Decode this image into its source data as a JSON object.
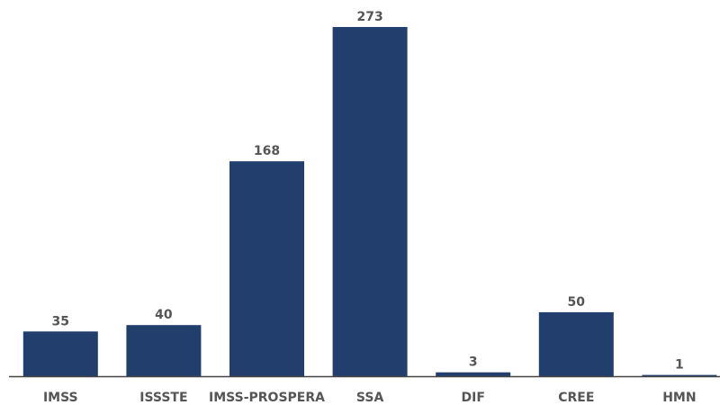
{
  "chart_data": {
    "type": "bar",
    "categories": [
      "IMSS",
      "ISSSTE",
      "IMSS-PROSPERA",
      "SSA",
      "DIF",
      "CREE",
      "HMN"
    ],
    "values": [
      35,
      40,
      168,
      273,
      3,
      50,
      1
    ],
    "ylim": [
      0,
      273
    ],
    "grid": false,
    "legend": "none",
    "bar_color": "#213e6d",
    "axis_color": "#444444",
    "label_color": "#555555"
  }
}
